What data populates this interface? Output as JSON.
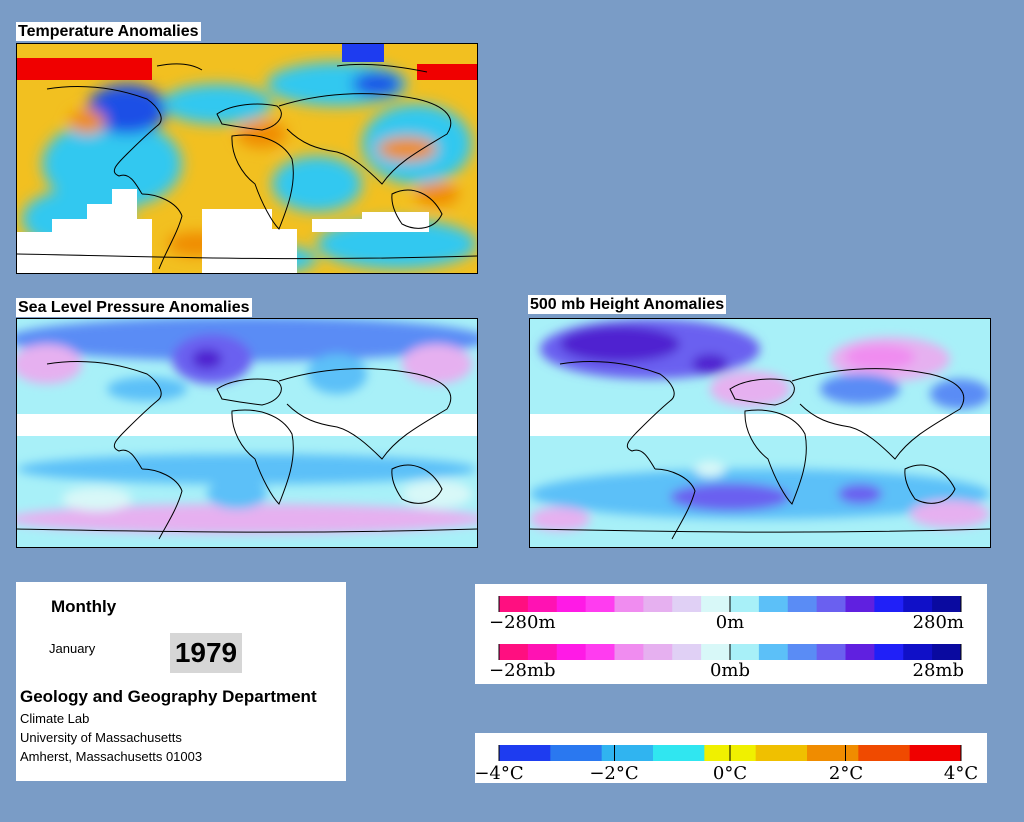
{
  "maps": {
    "temperature": {
      "title": "Temperature Anomalies"
    },
    "slp": {
      "title": "Sea Level Pressure Anomalies"
    },
    "height": {
      "title": "500 mb Height Anomalies"
    }
  },
  "info": {
    "period": "Monthly",
    "month": "January",
    "year": "1979",
    "department": "Geology and Geography Department",
    "lines": [
      "Climate Lab",
      "University of Massachusetts",
      "Amherst, Massachusetts 01003"
    ]
  },
  "legends": {
    "height": {
      "min_label": "−280m",
      "mid_label": "0m",
      "max_label": "280m",
      "colors": [
        "#ff0f80",
        "#ff12b3",
        "#ff1ae6",
        "#ff3cf0",
        "#f08cf0",
        "#e6b0f0",
        "#e0d0f5",
        "#d8f8f8",
        "#a8f0f8",
        "#5cc0f8",
        "#5a8cf5",
        "#6a60f0",
        "#6020e0",
        "#2020f8",
        "#1010c8",
        "#0a0aa0"
      ]
    },
    "pressure": {
      "min_label": "−28mb",
      "mid_label": "0mb",
      "max_label": "28mb",
      "colors": [
        "#ff0f80",
        "#ff12b3",
        "#ff1ae6",
        "#ff3cf0",
        "#f08cf0",
        "#e6b0f0",
        "#e0d0f5",
        "#d8f8f8",
        "#a8f0f8",
        "#5cc0f8",
        "#5a8cf5",
        "#6a60f0",
        "#6020e0",
        "#2020f8",
        "#1010c8",
        "#0a0aa0"
      ]
    },
    "temperature": {
      "labels": [
        "−4°C",
        "−2°C",
        "0°C",
        "2°C",
        "4°C"
      ],
      "colors": [
        "#1e3cf0",
        "#2a78f0",
        "#30b4f0",
        "#30e6f0",
        "#f0f000",
        "#f0c000",
        "#f08c00",
        "#f04a00",
        "#f00000"
      ]
    }
  }
}
